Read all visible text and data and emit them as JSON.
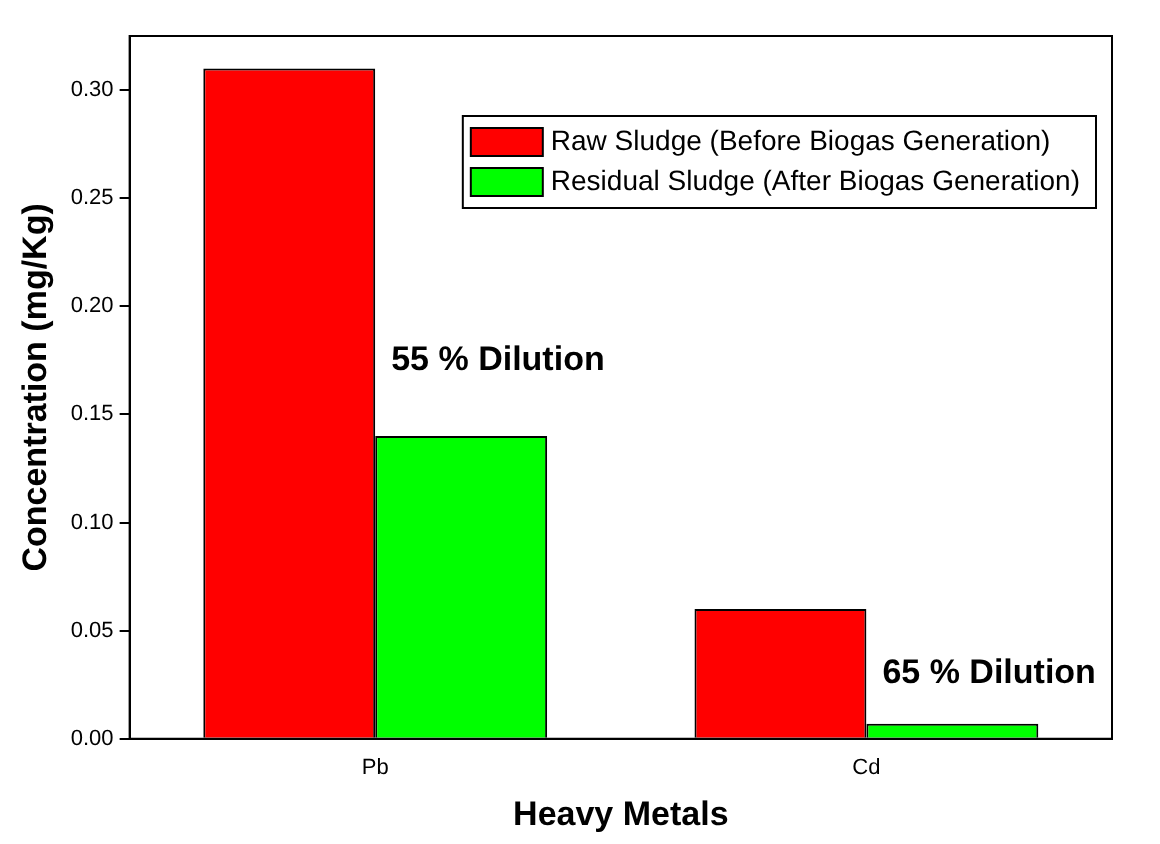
{
  "chart_data": {
    "type": "bar",
    "xlabel": "Heavy Metals",
    "ylabel": "Concentration (mg/Kg)",
    "categories": [
      "Pb",
      "Cd"
    ],
    "series": [
      {
        "name": "Raw Sludge (Before Biogas Generation)",
        "color": "#ff0000",
        "values": [
          0.31,
          0.06
        ]
      },
      {
        "name": "Residual Sludge (After Biogas Generation)",
        "color": "#00ff00",
        "values": [
          0.14,
          0.007
        ]
      }
    ],
    "ylim": [
      0,
      0.325
    ],
    "yticks": [
      {
        "value": 0,
        "label": "0.00"
      },
      {
        "value": 0.05,
        "label": "0.05"
      },
      {
        "value": 0.1,
        "label": "0.10"
      },
      {
        "value": 0.15,
        "label": "0.15"
      },
      {
        "value": 0.2,
        "label": "0.20"
      },
      {
        "value": 0.25,
        "label": "0.25"
      },
      {
        "value": 0.3,
        "label": "0.30"
      }
    ],
    "annotations": [
      {
        "text": "55 % Dilution",
        "x": "Pb",
        "y": 0.175
      },
      {
        "text": "65 % Dilution",
        "x": "Cd",
        "y": 0.03
      }
    ],
    "grid": false,
    "legend": "top right"
  }
}
